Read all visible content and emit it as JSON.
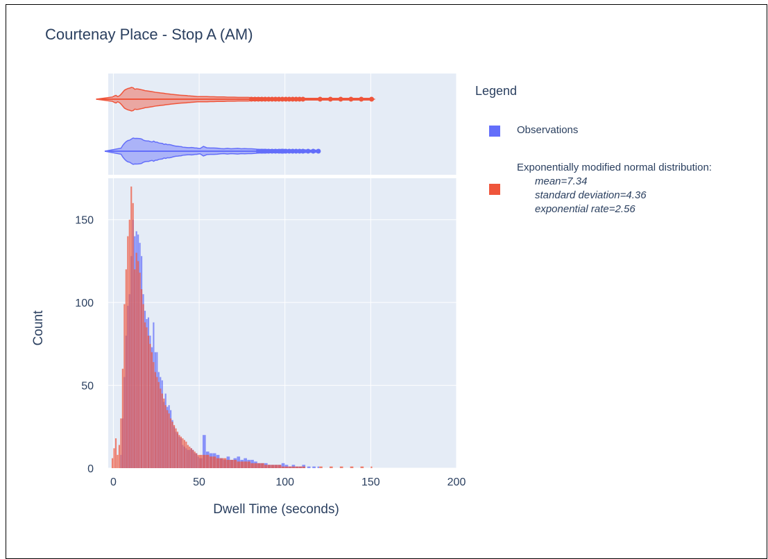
{
  "colors": {
    "observations": "#636efa",
    "distribution": "#ef553b",
    "plot_bg": "#e5ecf6",
    "grid": "#ffffff",
    "text": "#2a3f5f"
  },
  "chart_data": {
    "type": "bar",
    "subtype": "overlaid histogram with marginal violin plots",
    "title": "Courtenay Place - Stop A (AM)",
    "xlabel": "Dwell Time (seconds)",
    "ylabel": "Count",
    "xlim": [
      -3,
      200
    ],
    "ylim": [
      0,
      175
    ],
    "x_ticks": [
      "0",
      "50",
      "100",
      "150",
      "200"
    ],
    "y_ticks": [
      "0",
      "50",
      "100",
      "150"
    ],
    "grid": true,
    "legend_position": "right",
    "legend_title": "Legend",
    "bin_width": 1,
    "series": [
      {
        "name": "Observations",
        "color_key": "observations",
        "bin_starts": [
          4,
          5,
          6,
          7,
          8,
          9,
          10,
          11,
          12,
          13,
          14,
          15,
          16,
          17,
          18,
          19,
          20,
          21,
          22,
          23,
          24,
          25,
          26,
          27,
          28,
          29,
          30,
          31,
          32,
          33,
          34,
          35,
          36,
          37,
          38,
          39,
          40,
          41,
          42,
          43,
          44,
          45,
          46,
          47,
          48,
          49,
          50,
          52,
          54,
          56,
          58,
          60,
          62,
          64,
          66,
          68,
          70,
          72,
          74,
          76,
          78,
          80,
          82,
          84,
          86,
          88,
          90,
          92,
          94,
          96,
          98,
          100,
          102,
          104,
          106,
          108,
          110,
          113,
          116,
          119
        ],
        "counts": [
          8,
          30,
          55,
          80,
          98,
          105,
          128,
          150,
          140,
          143,
          141,
          136,
          128,
          105,
          95,
          90,
          91,
          80,
          73,
          88,
          70,
          70,
          58,
          55,
          53,
          40,
          45,
          37,
          38,
          35,
          29,
          25,
          22,
          21,
          19,
          18,
          14,
          13,
          12,
          11,
          11,
          12,
          11,
          9,
          9,
          7,
          6,
          20,
          10,
          9,
          9,
          8,
          6,
          5,
          7,
          5,
          6,
          7,
          5,
          6,
          5,
          5,
          4,
          3,
          3,
          3,
          2,
          2,
          2,
          2,
          3,
          2,
          1,
          2,
          1,
          1,
          2,
          1,
          1,
          1
        ],
        "violin_x_range": [
          -5,
          120
        ]
      },
      {
        "name": "Exponentially modified normal distribution:",
        "params": [
          "mean=7.34",
          "standard deviation=4.36",
          "exponential rate=2.56"
        ],
        "color_key": "distribution",
        "bin_starts": [
          -1,
          0,
          1,
          2,
          3,
          4,
          5,
          6,
          7,
          8,
          9,
          10,
          11,
          12,
          13,
          14,
          15,
          16,
          17,
          18,
          19,
          20,
          21,
          22,
          23,
          24,
          25,
          26,
          27,
          28,
          29,
          30,
          31,
          32,
          33,
          34,
          35,
          36,
          37,
          38,
          39,
          40,
          41,
          42,
          43,
          44,
          45,
          46,
          47,
          48,
          49,
          50,
          52,
          54,
          56,
          58,
          60,
          62,
          64,
          66,
          68,
          70,
          72,
          74,
          76,
          78,
          80,
          82,
          84,
          86,
          88,
          90,
          92,
          94,
          96,
          98,
          100,
          102,
          104,
          106,
          108,
          110,
          120,
          126,
          132,
          138,
          144,
          150
        ],
        "counts": [
          6,
          12,
          18,
          8,
          14,
          30,
          60,
          99,
          120,
          140,
          150,
          170,
          160,
          120,
          130,
          125,
          118,
          108,
          99,
          88,
          85,
          80,
          75,
          70,
          64,
          58,
          55,
          52,
          48,
          45,
          42,
          38,
          35,
          33,
          30,
          28,
          26,
          24,
          22,
          20,
          19,
          18,
          17,
          16,
          14,
          13,
          12,
          11,
          10,
          9,
          8,
          8,
          8,
          8,
          7,
          7,
          6,
          6,
          6,
          5,
          5,
          5,
          4,
          4,
          4,
          4,
          3,
          3,
          3,
          3,
          2,
          2,
          2,
          2,
          2,
          1,
          1,
          1,
          1,
          1,
          1,
          1,
          1,
          1,
          1,
          1,
          1,
          1
        ],
        "violin_x_range": [
          -10,
          152
        ]
      }
    ]
  }
}
